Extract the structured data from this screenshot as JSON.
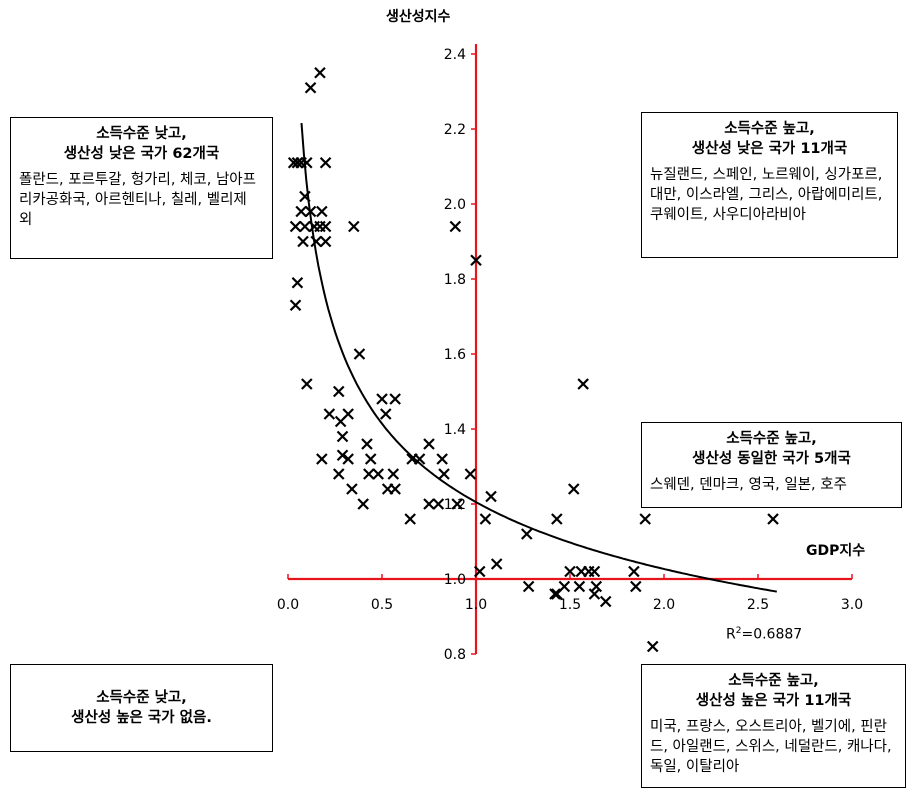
{
  "chart_data": {
    "type": "scatter",
    "ylabel": "생산성지수",
    "xlabel": "GDP지수",
    "xlim": [
      0.0,
      3.0
    ],
    "ylim": [
      0.8,
      2.4
    ],
    "x_ticks": [
      "0.0",
      "0.5",
      "1.0",
      "1.5",
      "2.0",
      "2.5",
      "3.0"
    ],
    "y_ticks": [
      "0.8",
      "1.0",
      "1.2",
      "1.4",
      "1.6",
      "1.8",
      "2.0",
      "2.2",
      "2.4"
    ],
    "axis_cross": {
      "x": 1.0,
      "y": 1.0
    },
    "axis_color": "#e8141c",
    "marker": "x",
    "fit": {
      "type": "power",
      "a": 1.205,
      "b": -0.231,
      "x_range": [
        0.02,
        2.6
      ],
      "r2_label": "=0.6887"
    },
    "points": [
      [
        0.17,
        2.35
      ],
      [
        0.12,
        2.31
      ],
      [
        0.03,
        2.11
      ],
      [
        0.05,
        2.11
      ],
      [
        0.07,
        2.11
      ],
      [
        0.1,
        2.11
      ],
      [
        0.2,
        2.11
      ],
      [
        0.09,
        2.02
      ],
      [
        0.07,
        1.98
      ],
      [
        0.12,
        1.98
      ],
      [
        0.18,
        1.98
      ],
      [
        0.04,
        1.94
      ],
      [
        0.09,
        1.94
      ],
      [
        0.14,
        1.94
      ],
      [
        0.17,
        1.94
      ],
      [
        0.2,
        1.94
      ],
      [
        0.35,
        1.94
      ],
      [
        0.89,
        1.94
      ],
      [
        0.08,
        1.9
      ],
      [
        0.15,
        1.9
      ],
      [
        0.2,
        1.9
      ],
      [
        1.0,
        1.85
      ],
      [
        0.05,
        1.79
      ],
      [
        0.04,
        1.73
      ],
      [
        0.38,
        1.6
      ],
      [
        0.1,
        1.52
      ],
      [
        1.57,
        1.52
      ],
      [
        0.27,
        1.5
      ],
      [
        0.5,
        1.48
      ],
      [
        0.57,
        1.48
      ],
      [
        0.22,
        1.44
      ],
      [
        0.32,
        1.44
      ],
      [
        0.52,
        1.44
      ],
      [
        0.28,
        1.42
      ],
      [
        0.29,
        1.38
      ],
      [
        0.42,
        1.36
      ],
      [
        0.75,
        1.36
      ],
      [
        0.29,
        1.33
      ],
      [
        0.18,
        1.32
      ],
      [
        0.32,
        1.32
      ],
      [
        0.44,
        1.32
      ],
      [
        0.66,
        1.32
      ],
      [
        0.7,
        1.32
      ],
      [
        0.82,
        1.32
      ],
      [
        0.27,
        1.28
      ],
      [
        0.43,
        1.28
      ],
      [
        0.48,
        1.28
      ],
      [
        0.56,
        1.28
      ],
      [
        0.83,
        1.28
      ],
      [
        0.97,
        1.28
      ],
      [
        0.34,
        1.24
      ],
      [
        0.53,
        1.24
      ],
      [
        0.57,
        1.24
      ],
      [
        1.52,
        1.24
      ],
      [
        1.08,
        1.22
      ],
      [
        0.4,
        1.2
      ],
      [
        0.75,
        1.2
      ],
      [
        0.8,
        1.2
      ],
      [
        0.9,
        1.2
      ],
      [
        0.65,
        1.16
      ],
      [
        1.05,
        1.16
      ],
      [
        1.43,
        1.16
      ],
      [
        1.9,
        1.16
      ],
      [
        2.58,
        1.16
      ],
      [
        1.27,
        1.12
      ],
      [
        1.11,
        1.04
      ],
      [
        1.02,
        1.02
      ],
      [
        1.5,
        1.02
      ],
      [
        1.56,
        1.02
      ],
      [
        1.6,
        1.02
      ],
      [
        1.63,
        1.02
      ],
      [
        1.84,
        1.02
      ],
      [
        1.28,
        0.98
      ],
      [
        1.47,
        0.98
      ],
      [
        1.55,
        0.98
      ],
      [
        1.64,
        0.98
      ],
      [
        1.85,
        0.98
      ],
      [
        1.42,
        0.96
      ],
      [
        1.43,
        0.96
      ],
      [
        1.63,
        0.96
      ],
      [
        1.69,
        0.94
      ],
      [
        1.94,
        0.82
      ]
    ]
  },
  "annotations": {
    "top_left": {
      "title_lines": [
        "소득수준 낮고,",
        "생산성 낮은 국가 62개국"
      ],
      "body": "폴란드, 포르투갈, 헝가리, 체코, 남아프리카공화국, 아르헨티나, 칠레, 벨리제 외"
    },
    "top_right": {
      "title_lines": [
        "소득수준 높고,",
        "생산성 낮은 국가 11개국"
      ],
      "body": "뉴질랜드, 스페인, 노르웨이, 싱가포르, 대만, 이스라엘, 그리스, 아랍에미리트, 쿠웨이트, 사우디아라비아"
    },
    "mid_right": {
      "title_lines": [
        "소득수준 높고,",
        "생산성 동일한 국가 5개국"
      ],
      "body": "스웨덴, 덴마크, 영국, 일본, 호주"
    },
    "bottom_left": {
      "title_lines": [
        "소득수준 낮고,",
        "생산성 높은 국가 없음."
      ],
      "body": ""
    },
    "bottom_right": {
      "title_lines": [
        "소득수준 높고,",
        "생산성 높은 국가 11개국"
      ],
      "body": "미국, 프랑스, 오스트리아, 벨기에, 핀란드, 아일랜드, 스위스, 네덜란드, 캐나다, 독일, 이탈리아"
    }
  }
}
